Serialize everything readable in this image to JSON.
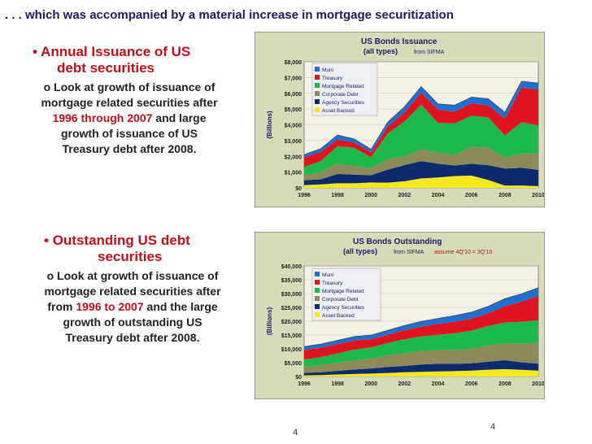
{
  "slide": {
    "title": ". . . which was accompanied by a material increase in mortgage securitization",
    "page_left": "4",
    "page_right": "4"
  },
  "bullets": [
    {
      "head": "Annual Issuance of US",
      "head2": "debt securities",
      "sub": {
        "pre": "Look at growth of issuance of mortgage related securities after",
        "hl": "1996 through 2007",
        "post": "and large growth of issuance of US Treasury debt after 2008."
      }
    },
    {
      "head": "Outstanding US debt",
      "head2": "securities",
      "sub": {
        "pre": "Look at growth of issuance of mortgage related securities after from",
        "hl": "1996 to 2007",
        "post": "and the large growth of outstanding US Treasury debt after 2008."
      }
    }
  ],
  "colors": {
    "Muni": "#1f6fd0",
    "Treasury": "#e0141e",
    "Mortgage Related": "#1db84a",
    "Corporate Debt": "#8c8a5a",
    "Agency Securities": "#0c2a6e",
    "Asset Backed": "#f5e81c"
  },
  "chart_data": [
    {
      "type": "area",
      "stacked": true,
      "title": "US Bonds Issuance",
      "subtitle": "(all types)",
      "source": "from SIFMA",
      "note": "",
      "ylabel": "(Billions)",
      "ylim": [
        0,
        8000
      ],
      "yticks": [
        "$0",
        "$1,000",
        "$2,000",
        "$3,000",
        "$4,000",
        "$5,000",
        "$6,000",
        "$7,000",
        "$8,000"
      ],
      "x": [
        1996,
        1997,
        1998,
        1999,
        2000,
        2001,
        2002,
        2003,
        2004,
        2005,
        2006,
        2007,
        2008,
        2009,
        2010
      ],
      "xticks": [
        "1996",
        "1998",
        "2000",
        "2002",
        "2004",
        "2006",
        "2008",
        "2010"
      ],
      "legend": [
        "Muni",
        "Treasury",
        "Mortgage Related",
        "Corporate Debt",
        "Agency Securities",
        "Asset Backed"
      ],
      "series": [
        {
          "name": "Asset Backed",
          "values": [
            170,
            220,
            290,
            290,
            340,
            330,
            420,
            600,
            660,
            750,
            780,
            500,
            140,
            150,
            110
          ]
        },
        {
          "name": "Agency Securities",
          "values": [
            310,
            320,
            590,
            550,
            460,
            830,
            1020,
            1100,
            880,
            670,
            750,
            940,
            1090,
            1120,
            1030
          ]
        },
        {
          "name": "Corporate Debt",
          "values": [
            340,
            470,
            650,
            560,
            460,
            660,
            550,
            760,
            700,
            680,
            1060,
            1120,
            700,
            900,
            1050
          ]
        },
        {
          "name": "Mortgage Related",
          "values": [
            500,
            700,
            1110,
            1140,
            680,
            1640,
            2220,
            2820,
            1880,
            1990,
            1990,
            1920,
            1390,
            2000,
            1770
          ]
        },
        {
          "name": "Treasury",
          "values": [
            610,
            570,
            430,
            330,
            310,
            430,
            580,
            760,
            850,
            750,
            790,
            760,
            1090,
            2190,
            2270
          ]
        },
        {
          "name": "Muni",
          "values": [
            180,
            220,
            290,
            230,
            200,
            290,
            360,
            390,
            360,
            410,
            390,
            420,
            390,
            410,
            430
          ]
        }
      ]
    },
    {
      "type": "area",
      "stacked": true,
      "title": "US Bonds Outstanding",
      "subtitle": "(all types)",
      "source": "from SIFMA",
      "note": "assume 4Q'10 = 3Q'10",
      "ylabel": "(Billions)",
      "ylim": [
        0,
        40000
      ],
      "yticks": [
        "$0",
        "$5,000",
        "$10,000",
        "$15,000",
        "$20,000",
        "$25,000",
        "$30,000",
        "$35,000",
        "$40,000"
      ],
      "x": [
        1996,
        1997,
        1998,
        1999,
        2000,
        2001,
        2002,
        2003,
        2004,
        2005,
        2006,
        2007,
        2008,
        2009,
        2010
      ],
      "xticks": [
        "1996",
        "1998",
        "2000",
        "2002",
        "2004",
        "2006",
        "2008",
        "2010"
      ],
      "legend": [
        "Muni",
        "Treasury",
        "Mortgage Related",
        "Corporate Debt",
        "Agency Securities",
        "Asset Backed"
      ],
      "series": [
        {
          "name": "Asset Backed",
          "values": [
            400,
            540,
            730,
            900,
            1070,
            1280,
            1540,
            1690,
            1830,
            1950,
            2130,
            2470,
            2670,
            2430,
            2150
          ]
        },
        {
          "name": "Agency Securities",
          "values": [
            930,
            1020,
            1300,
            1620,
            1850,
            2150,
            2290,
            2640,
            2750,
            2600,
            2650,
            2900,
            3200,
            2700,
            2500
          ]
        },
        {
          "name": "Corporate Debt",
          "values": [
            2130,
            2510,
            3020,
            3310,
            3590,
            4210,
            4580,
            4850,
            4980,
            5100,
            5300,
            5900,
            6200,
            6800,
            7500
          ]
        },
        {
          "name": "Mortgage Related",
          "values": [
            2700,
            2900,
            3300,
            3900,
            4000,
            4500,
            5100,
            5300,
            5500,
            6000,
            6500,
            7000,
            7500,
            7900,
            8200
          ]
        },
        {
          "name": "Treasury",
          "values": [
            3460,
            3450,
            3360,
            3280,
            2970,
            2970,
            3200,
            3570,
            3940,
            4170,
            4320,
            4520,
            5910,
            7260,
            8850
          ]
        },
        {
          "name": "Muni",
          "values": [
            1260,
            1320,
            1400,
            1460,
            1480,
            1600,
            1760,
            1900,
            2030,
            2230,
            2400,
            2620,
            2690,
            2810,
            2925
          ]
        }
      ]
    }
  ]
}
